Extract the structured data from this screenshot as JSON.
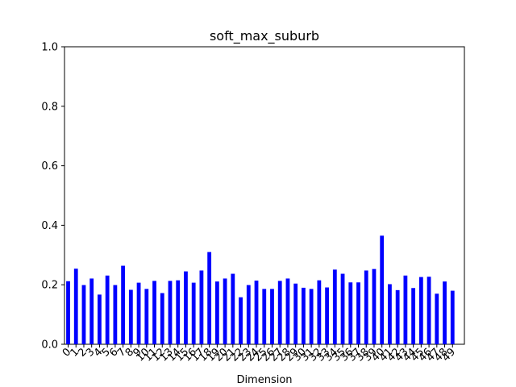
{
  "chart_data": {
    "type": "bar",
    "title": "soft_max_suburb",
    "xlabel": "Dimension",
    "ylabel": "",
    "ylim": [
      0.0,
      1.0
    ],
    "yticks": [
      "0.0",
      "0.2",
      "0.4",
      "0.6",
      "0.8",
      "1.0"
    ],
    "grid": false,
    "bar_color": "#0000ff",
    "categories": [
      "0",
      "1",
      "2",
      "3",
      "4",
      "5",
      "6",
      "7",
      "8",
      "9",
      "10",
      "11",
      "12",
      "13",
      "14",
      "15",
      "16",
      "17",
      "18",
      "19",
      "20",
      "21",
      "22",
      "23",
      "24",
      "25",
      "26",
      "27",
      "28",
      "29",
      "30",
      "31",
      "32",
      "33",
      "34",
      "35",
      "36",
      "37",
      "38",
      "39",
      "40",
      "41",
      "42",
      "43",
      "44",
      "45",
      "46",
      "47",
      "48",
      "49"
    ],
    "values": [
      0.212,
      0.254,
      0.199,
      0.221,
      0.167,
      0.231,
      0.199,
      0.264,
      0.183,
      0.207,
      0.186,
      0.213,
      0.172,
      0.213,
      0.215,
      0.245,
      0.207,
      0.248,
      0.31,
      0.211,
      0.221,
      0.237,
      0.158,
      0.199,
      0.214,
      0.186,
      0.186,
      0.213,
      0.221,
      0.204,
      0.19,
      0.186,
      0.215,
      0.191,
      0.251,
      0.237,
      0.208,
      0.208,
      0.248,
      0.253,
      0.365,
      0.202,
      0.182,
      0.231,
      0.189,
      0.226,
      0.227,
      0.17,
      0.211,
      0.18
    ]
  }
}
